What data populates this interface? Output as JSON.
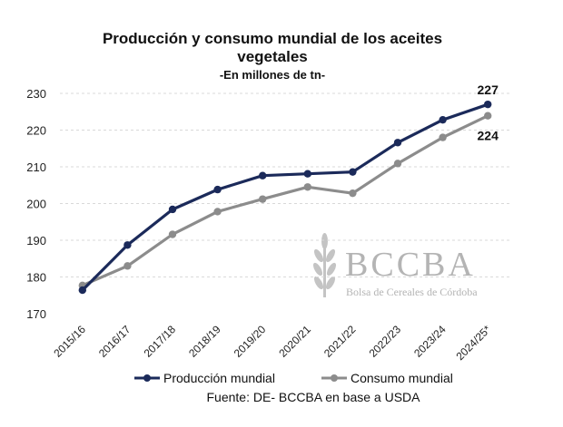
{
  "chart_data": {
    "type": "line",
    "title": [
      "Producción y consumo mundial de los aceites",
      "vegetales"
    ],
    "subtitle": "-En millones de tn-",
    "categories": [
      "2015/16",
      "2016/17",
      "2017/18",
      "2018/19",
      "2019/20",
      "2020/21",
      "2021/22",
      "2022/23",
      "2023/24",
      "2024/25*"
    ],
    "ylim": [
      170,
      230
    ],
    "yticks": [
      "170",
      "180",
      "190",
      "200",
      "210",
      "220",
      "230"
    ],
    "grid": true,
    "legend_position": "bottom",
    "series": [
      {
        "name": "Producción mundial",
        "color": "#1b2a5a",
        "values": [
          176.4,
          188.7,
          198.4,
          203.8,
          207.6,
          208.1,
          208.6,
          216.6,
          222.8,
          227.0
        ],
        "end_label": "227"
      },
      {
        "name": "Consumo mundial",
        "color": "#8c8c8c",
        "values": [
          177.7,
          183.0,
          191.6,
          197.8,
          201.2,
          204.5,
          202.8,
          210.9,
          218.0,
          223.9
        ],
        "end_label": "224"
      }
    ],
    "source": "Fuente: DE- BCCBA en base a USDA"
  },
  "watermark": {
    "letters": "BCCBA",
    "subtitle": "Bolsa de Cereales de Córdoba"
  }
}
